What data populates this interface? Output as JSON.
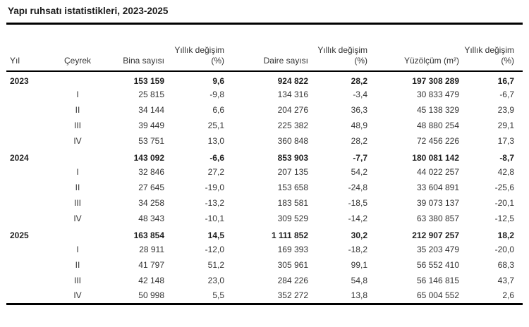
{
  "title": "Yapı ruhsatı istatistikleri, 2023-2025",
  "colors": {
    "background": "#ffffff",
    "text": "#333333",
    "rule": "#000000"
  },
  "table": {
    "columns": [
      "Yıl",
      "Çeyrek",
      "Bina sayısı",
      "Yıllık değişim (%)",
      "Daire sayısı",
      "Yıllık değişim (%)",
      "Yüzölçüm (m²)",
      "Yıllık değişim (%)"
    ],
    "rows": [
      {
        "year": "2023",
        "quarter": "",
        "is_year_total": true,
        "values": [
          "153 159",
          "9,6",
          "924 822",
          "28,2",
          "197 308 289",
          "16,7"
        ]
      },
      {
        "year": "",
        "quarter": "I",
        "is_year_total": false,
        "values": [
          "25 815",
          "-9,8",
          "134 316",
          "-3,4",
          "30 833 479",
          "-6,7"
        ]
      },
      {
        "year": "",
        "quarter": "II",
        "is_year_total": false,
        "values": [
          "34 144",
          "6,6",
          "204 276",
          "36,3",
          "45 138 329",
          "23,9"
        ]
      },
      {
        "year": "",
        "quarter": "III",
        "is_year_total": false,
        "values": [
          "39 449",
          "25,1",
          "225 382",
          "48,9",
          "48 880 254",
          "29,1"
        ]
      },
      {
        "year": "",
        "quarter": "IV",
        "is_year_total": false,
        "values": [
          "53 751",
          "13,0",
          "360 848",
          "28,2",
          "72 456 226",
          "17,3"
        ]
      },
      {
        "year": "2024",
        "quarter": "",
        "is_year_total": true,
        "values": [
          "143 092",
          "-6,6",
          "853 903",
          "-7,7",
          "180 081 142",
          "-8,7"
        ]
      },
      {
        "year": "",
        "quarter": "I",
        "is_year_total": false,
        "values": [
          "32 846",
          "27,2",
          "207 135",
          "54,2",
          "44 022 257",
          "42,8"
        ]
      },
      {
        "year": "",
        "quarter": "II",
        "is_year_total": false,
        "values": [
          "27 645",
          "-19,0",
          "153 658",
          "-24,8",
          "33 604 891",
          "-25,6"
        ]
      },
      {
        "year": "",
        "quarter": "III",
        "is_year_total": false,
        "values": [
          "34 258",
          "-13,2",
          "183 581",
          "-18,5",
          "39 073 137",
          "-20,1"
        ]
      },
      {
        "year": "",
        "quarter": "IV",
        "is_year_total": false,
        "values": [
          "48 343",
          "-10,1",
          "309 529",
          "-14,2",
          "63 380 857",
          "-12,5"
        ]
      },
      {
        "year": "2025",
        "quarter": "",
        "is_year_total": true,
        "values": [
          "163 854",
          "14,5",
          "1 111 852",
          "30,2",
          "212 907 257",
          "18,2"
        ]
      },
      {
        "year": "",
        "quarter": "I",
        "is_year_total": false,
        "values": [
          "28 911",
          "-12,0",
          "169 393",
          "-18,2",
          "35 203 479",
          "-20,0"
        ]
      },
      {
        "year": "",
        "quarter": "II",
        "is_year_total": false,
        "values": [
          "41 797",
          "51,2",
          "305 961",
          "99,1",
          "56 552 410",
          "68,3"
        ]
      },
      {
        "year": "",
        "quarter": "III",
        "is_year_total": false,
        "values": [
          "42 148",
          "23,0",
          "284 226",
          "54,8",
          "56 146 815",
          "43,7"
        ]
      },
      {
        "year": "",
        "quarter": "IV",
        "is_year_total": false,
        "values": [
          "50 998",
          "5,5",
          "352 272",
          "13,8",
          "65 004 552",
          "2,6"
        ]
      }
    ]
  }
}
